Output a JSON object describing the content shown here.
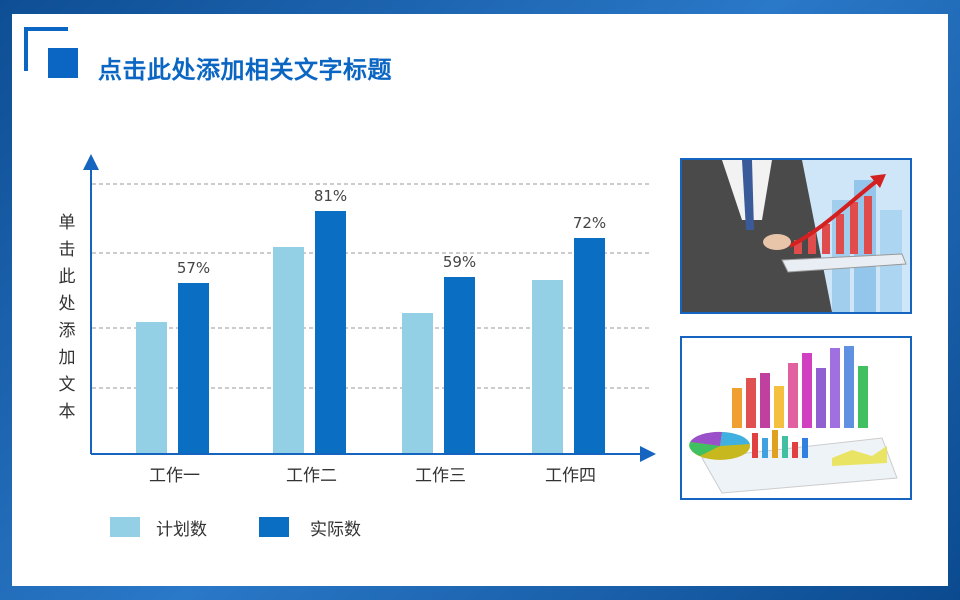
{
  "slide": {
    "title": "点击此处添加相关文字标题"
  },
  "colors": {
    "plan": "#93d0e6",
    "actual": "#0a6fc2",
    "accent": "#0a66c2",
    "axis": "#1565c0"
  },
  "chart_data": {
    "type": "bar",
    "title": "",
    "ylabel": "单击此处添加文本",
    "xlabel": "",
    "categories": [
      "工作一",
      "工作二",
      "工作三",
      "工作四"
    ],
    "series": [
      {
        "name": "计划数",
        "values": [
          44,
          69,
          47,
          58
        ]
      },
      {
        "name": "实际数",
        "values": [
          57,
          81,
          59,
          72
        ]
      }
    ],
    "data_labels": [
      "57%",
      "81%",
      "59%",
      "72%"
    ],
    "ylim": [
      0,
      100
    ],
    "grid": true,
    "legend_position": "bottom-left"
  },
  "legend": {
    "plan_label": "计划数",
    "actual_label": "实际数"
  },
  "images": {
    "photo1_icon": "business-growth-chart-image",
    "photo2_icon": "3d-bar-chart-image"
  }
}
